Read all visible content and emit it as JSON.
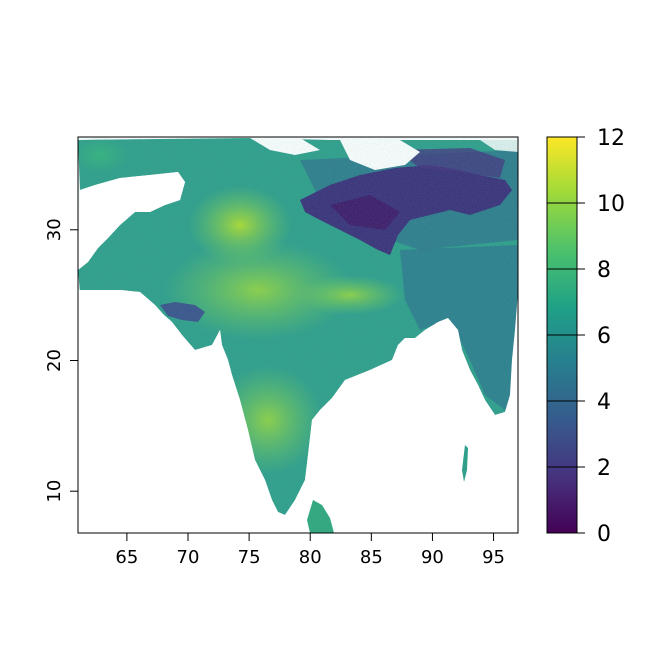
{
  "map": {
    "x_axis": {
      "range": [
        61,
        97
      ],
      "ticks": [
        "65",
        "70",
        "75",
        "80",
        "85",
        "90",
        "95"
      ]
    },
    "y_axis": {
      "range": [
        6.8,
        37.1
      ],
      "ticks": [
        "10",
        "20",
        "30"
      ]
    },
    "colorbar": {
      "range": [
        0,
        12
      ],
      "ticks": [
        "0",
        "2",
        "4",
        "6",
        "8",
        "10",
        "12"
      ],
      "palette": [
        "#440154",
        "#46327e",
        "#365c8d",
        "#277f8e",
        "#1fa187",
        "#4ac16d",
        "#a0da39",
        "#fde725"
      ]
    },
    "background": "#ffffff"
  }
}
